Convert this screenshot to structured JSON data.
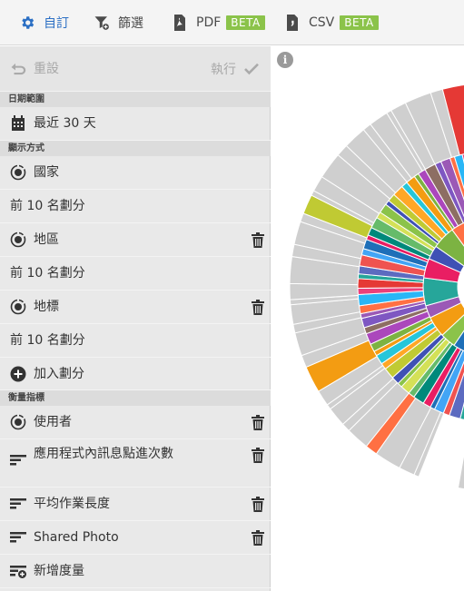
{
  "toolbar": {
    "customize_label": "自訂",
    "filter_label": "篩選",
    "pdf_label": "PDF",
    "pdf_badge": "BETA",
    "csv_label": "CSV",
    "csv_badge": "BETA"
  },
  "panel": {
    "reset_label": "重設",
    "run_label": "執行",
    "date_section": "日期範圍",
    "date_value": "最近 30 天",
    "display_section": "顯示方式",
    "dimensions": [
      {
        "label": "國家",
        "split": "前 10 名劃分"
      },
      {
        "label": "地區",
        "split": "前 10 名劃分"
      },
      {
        "label": "地標",
        "split": "前 10 名劃分"
      }
    ],
    "add_split_label": "加入劃分",
    "metrics_section": "衡量指標",
    "metrics": [
      {
        "label": "使用者"
      },
      {
        "label": "應用程式內訊息點進次數"
      },
      {
        "label": "平均作業長度"
      },
      {
        "label": "Shared Photo"
      }
    ],
    "new_metric_label": "新增度量"
  },
  "colors": {
    "accent": "#2b6fc4",
    "badge": "#8bc34a",
    "panel_bg": "#e9e9e9",
    "section_bg": "#dcdcdc",
    "icon": "#333333"
  }
}
